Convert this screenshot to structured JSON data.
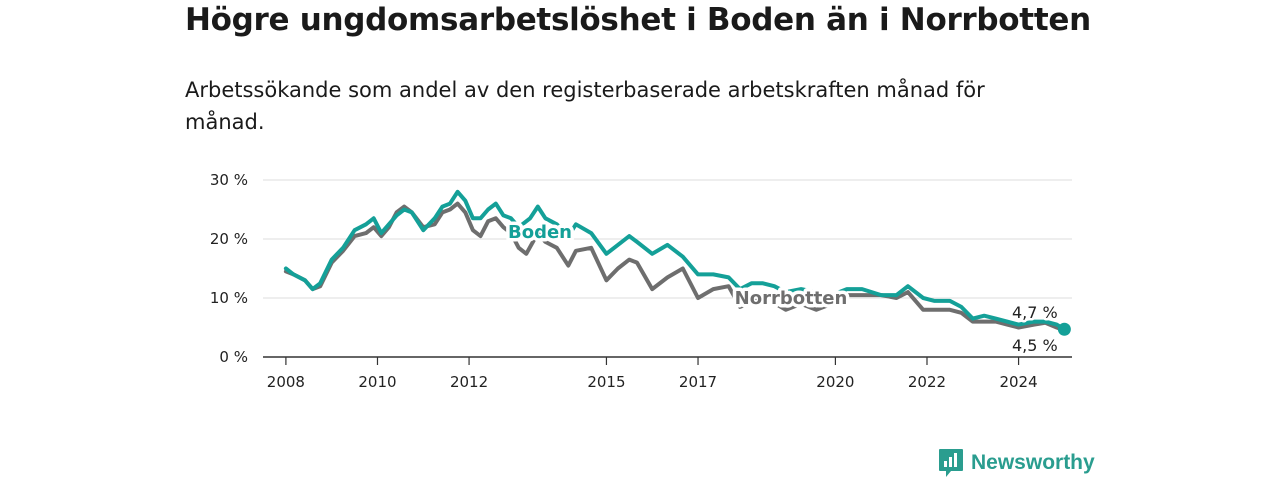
{
  "title": "Högre ungdomsarbetslöshet i Boden än i Norrbotten",
  "subtitle": "Arbetssökande som andel av den registerbaserade arbetskraften månad för månad.",
  "brand": {
    "name": "Newsworthy"
  },
  "colors": {
    "boden": "#14a098",
    "norrbotten": "#6e6e6e",
    "grid": "#dddddd",
    "axis": "#333333"
  },
  "chart_data": {
    "type": "line",
    "title": "Högre ungdomsarbetslöshet i Boden än i Norrbotten",
    "xlabel": "",
    "ylabel": "",
    "ylim": [
      0,
      30
    ],
    "xlim": [
      "2007-07",
      "2025-03"
    ],
    "grid": true,
    "x_ticks": [
      "2008",
      "2010",
      "2012",
      "2015",
      "2017",
      "2020",
      "2022",
      "2024"
    ],
    "y_ticks": [
      "0 %",
      "10 %",
      "20 %",
      "30 %"
    ],
    "series": [
      {
        "name": "Boden",
        "end_label": "4,7 %",
        "points": [
          [
            "2008-01",
            15
          ],
          [
            "2008-03",
            14
          ],
          [
            "2008-06",
            13
          ],
          [
            "2008-08",
            11.5
          ],
          [
            "2008-10",
            12.5
          ],
          [
            "2009-01",
            16.5
          ],
          [
            "2009-04",
            18.5
          ],
          [
            "2009-07",
            21.5
          ],
          [
            "2009-10",
            22.5
          ],
          [
            "2009-12",
            23.5
          ],
          [
            "2010-02",
            21
          ],
          [
            "2010-04",
            22.5
          ],
          [
            "2010-06",
            24
          ],
          [
            "2010-08",
            25
          ],
          [
            "2010-10",
            24.5
          ],
          [
            "2011-01",
            21.5
          ],
          [
            "2011-04",
            23.5
          ],
          [
            "2011-06",
            25.5
          ],
          [
            "2011-08",
            26
          ],
          [
            "2011-10",
            28
          ],
          [
            "2011-12",
            26.5
          ],
          [
            "2012-02",
            23.5
          ],
          [
            "2012-04",
            23.5
          ],
          [
            "2012-06",
            25
          ],
          [
            "2012-08",
            26
          ],
          [
            "2012-10",
            24
          ],
          [
            "2012-12",
            23.5
          ],
          [
            "2013-02",
            22
          ],
          [
            "2013-05",
            23.5
          ],
          [
            "2013-07",
            25.5
          ],
          [
            "2013-09",
            23.5
          ],
          [
            "2013-12",
            22.5
          ],
          [
            "2014-03",
            20.5
          ],
          [
            "2014-05",
            22.5
          ],
          [
            "2014-09",
            21
          ],
          [
            "2015-01",
            17.5
          ],
          [
            "2015-04",
            19
          ],
          [
            "2015-07",
            20.5
          ],
          [
            "2015-09",
            19.5
          ],
          [
            "2016-01",
            17.5
          ],
          [
            "2016-05",
            19
          ],
          [
            "2016-09",
            17
          ],
          [
            "2017-01",
            14
          ],
          [
            "2017-05",
            14
          ],
          [
            "2017-09",
            13.5
          ],
          [
            "2017-12",
            11.5
          ],
          [
            "2018-03",
            12.5
          ],
          [
            "2018-06",
            12.5
          ],
          [
            "2018-09",
            12
          ],
          [
            "2018-12",
            11
          ],
          [
            "2019-04",
            11.5
          ],
          [
            "2019-08",
            11
          ],
          [
            "2019-12",
            10.5
          ],
          [
            "2020-04",
            11.5
          ],
          [
            "2020-08",
            11.5
          ],
          [
            "2021-01",
            10.5
          ],
          [
            "2021-05",
            10.5
          ],
          [
            "2021-08",
            12
          ],
          [
            "2021-12",
            10
          ],
          [
            "2022-03",
            9.5
          ],
          [
            "2022-07",
            9.5
          ],
          [
            "2022-10",
            8.5
          ],
          [
            "2023-01",
            6.5
          ],
          [
            "2023-04",
            7
          ],
          [
            "2023-07",
            6.5
          ],
          [
            "2023-10",
            6
          ],
          [
            "2024-01",
            5.5
          ],
          [
            "2024-05",
            6
          ],
          [
            "2024-08",
            6
          ],
          [
            "2024-11",
            5.5
          ],
          [
            "2025-01",
            4.7
          ]
        ]
      },
      {
        "name": "Norrbotten",
        "end_label": "4,5 %",
        "points": [
          [
            "2008-01",
            14.5
          ],
          [
            "2008-03",
            14
          ],
          [
            "2008-06",
            13
          ],
          [
            "2008-08",
            11.5
          ],
          [
            "2008-10",
            12
          ],
          [
            "2009-01",
            16
          ],
          [
            "2009-04",
            18
          ],
          [
            "2009-07",
            20.5
          ],
          [
            "2009-10",
            21
          ],
          [
            "2009-12",
            22
          ],
          [
            "2010-02",
            20.5
          ],
          [
            "2010-04",
            22
          ],
          [
            "2010-06",
            24.5
          ],
          [
            "2010-08",
            25.5
          ],
          [
            "2010-10",
            24.5
          ],
          [
            "2011-01",
            22
          ],
          [
            "2011-04",
            22.5
          ],
          [
            "2011-06",
            24.5
          ],
          [
            "2011-08",
            25
          ],
          [
            "2011-10",
            26
          ],
          [
            "2011-12",
            24.5
          ],
          [
            "2012-02",
            21.5
          ],
          [
            "2012-04",
            20.5
          ],
          [
            "2012-06",
            23
          ],
          [
            "2012-08",
            23.5
          ],
          [
            "2012-10",
            22
          ],
          [
            "2012-12",
            21
          ],
          [
            "2013-02",
            18.5
          ],
          [
            "2013-04",
            17.5
          ],
          [
            "2013-07",
            21
          ],
          [
            "2013-09",
            19.5
          ],
          [
            "2013-12",
            18.5
          ],
          [
            "2014-03",
            15.5
          ],
          [
            "2014-05",
            18
          ],
          [
            "2014-09",
            18.5
          ],
          [
            "2015-01",
            13
          ],
          [
            "2015-04",
            15
          ],
          [
            "2015-07",
            16.5
          ],
          [
            "2015-09",
            16
          ],
          [
            "2016-01",
            11.5
          ],
          [
            "2016-05",
            13.5
          ],
          [
            "2016-09",
            15
          ],
          [
            "2017-01",
            10
          ],
          [
            "2017-05",
            11.5
          ],
          [
            "2017-09",
            12
          ],
          [
            "2017-12",
            8.5
          ],
          [
            "2018-04",
            9.5
          ],
          [
            "2018-08",
            9.5
          ],
          [
            "2018-12",
            8
          ],
          [
            "2019-04",
            9
          ],
          [
            "2019-08",
            8
          ],
          [
            "2019-12",
            9
          ],
          [
            "2020-04",
            10.5
          ],
          [
            "2020-08",
            10.5
          ],
          [
            "2021-01",
            10.5
          ],
          [
            "2021-05",
            10
          ],
          [
            "2021-08",
            11
          ],
          [
            "2021-12",
            8
          ],
          [
            "2022-03",
            8
          ],
          [
            "2022-07",
            8
          ],
          [
            "2022-10",
            7.5
          ],
          [
            "2023-01",
            6
          ],
          [
            "2023-04",
            6
          ],
          [
            "2023-07",
            6
          ],
          [
            "2023-10",
            5.5
          ],
          [
            "2024-01",
            5
          ],
          [
            "2024-05",
            5.5
          ],
          [
            "2024-08",
            5.8
          ],
          [
            "2024-11",
            5
          ],
          [
            "2025-01",
            4.5
          ]
        ]
      }
    ]
  }
}
